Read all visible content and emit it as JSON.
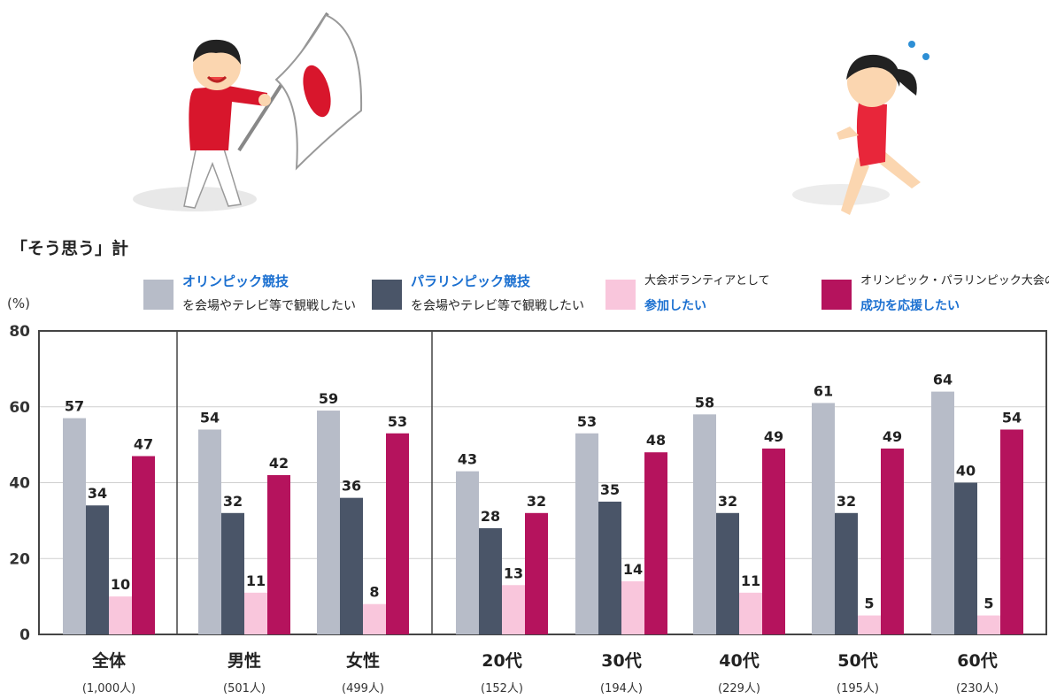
{
  "header": {
    "title": "「そう思う」計",
    "unit": "(%)"
  },
  "legend": [
    {
      "line1": "オリンピック競技",
      "line2": "を会場やテレビ等で観戦したい",
      "line1_style": "blue",
      "color": "#b7bcc8"
    },
    {
      "line1": "パラリンピック競技",
      "line2": "を会場やテレビ等で観戦したい",
      "line1_style": "blue",
      "color": "#4a5568"
    },
    {
      "line1": "大会ボランティアとして",
      "line2": "参加したい",
      "line1_style": "plain",
      "color": "#f9c6dc"
    },
    {
      "line1": "オリンピック・パラリンピック大会の",
      "line2": "成功を応援したい",
      "line1_style": "plain",
      "color": "#b5135d"
    }
  ],
  "groups": [
    {
      "label": "全体",
      "n": "(1,000人)"
    },
    {
      "label": "男性",
      "n": "(501人)"
    },
    {
      "label": "女性",
      "n": "(499人)"
    },
    {
      "label": "20代",
      "n": "(152人)"
    },
    {
      "label": "30代",
      "n": "(194人)"
    },
    {
      "label": "40代",
      "n": "(229人)"
    },
    {
      "label": "50代",
      "n": "(195人)"
    },
    {
      "label": "60代",
      "n": "(230人)"
    }
  ],
  "chart_data": {
    "type": "bar",
    "ylim": [
      0,
      80
    ],
    "yticks": [
      0,
      20,
      40,
      60,
      80
    ],
    "grid": true,
    "categories": [
      "全体",
      "男性",
      "女性",
      "20代",
      "30代",
      "40代",
      "50代",
      "60代"
    ],
    "series": [
      {
        "name": "オリンピック競技を会場やテレビ等で観戦したい",
        "color": "#b7bcc8",
        "values": [
          57,
          54,
          59,
          43,
          53,
          58,
          61,
          64
        ]
      },
      {
        "name": "パラリンピック競技を会場やテレビ等で観戦したい",
        "color": "#4a5568",
        "values": [
          34,
          32,
          36,
          28,
          35,
          32,
          32,
          40
        ]
      },
      {
        "name": "大会ボランティアとして参加したい",
        "color": "#f9c6dc",
        "values": [
          10,
          11,
          8,
          13,
          14,
          11,
          5,
          5
        ]
      },
      {
        "name": "オリンピック・パラリンピック大会の成功を応援したい",
        "color": "#b5135d",
        "values": [
          47,
          42,
          53,
          32,
          48,
          49,
          49,
          54
        ]
      }
    ]
  }
}
